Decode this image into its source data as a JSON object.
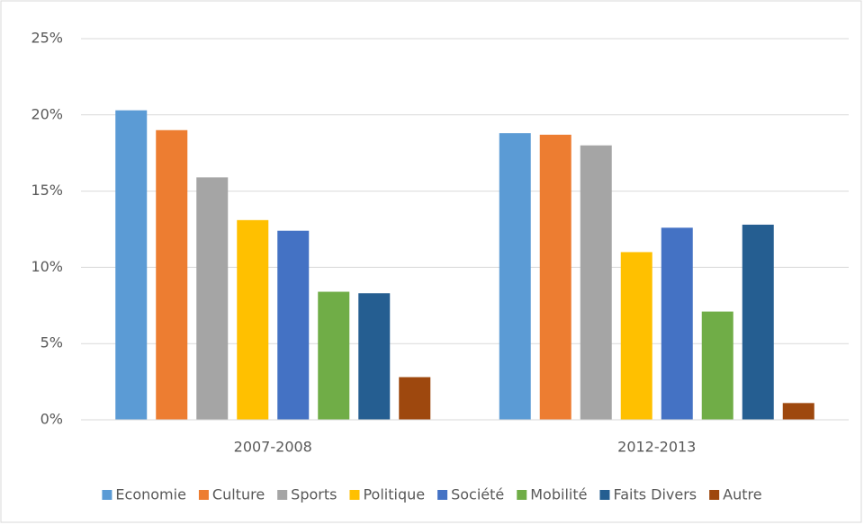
{
  "chart_data": {
    "type": "bar",
    "categories": [
      "2007-2008",
      "2012-2013"
    ],
    "series": [
      {
        "name": "Economie",
        "color": "#5b9bd5",
        "values": [
          20.3,
          18.8
        ]
      },
      {
        "name": "Culture",
        "color": "#ed7d31",
        "values": [
          19.0,
          18.7
        ]
      },
      {
        "name": "Sports",
        "color": "#a5a5a5",
        "values": [
          15.9,
          18.0
        ]
      },
      {
        "name": "Politique",
        "color": "#ffc000",
        "values": [
          13.1,
          11.0
        ]
      },
      {
        "name": "Société",
        "color": "#4472c4",
        "values": [
          12.4,
          12.6
        ]
      },
      {
        "name": "Mobilité",
        "color": "#70ad47",
        "values": [
          8.4,
          7.1
        ]
      },
      {
        "name": "Faits Divers",
        "color": "#255e91",
        "values": [
          8.3,
          12.8
        ]
      },
      {
        "name": "Autre",
        "color": "#9e480e",
        "values": [
          2.8,
          1.1
        ]
      }
    ],
    "ylim": [
      0,
      25
    ],
    "yticks": [
      {
        "value": 0,
        "label": "0%"
      },
      {
        "value": 5,
        "label": "5%"
      },
      {
        "value": 10,
        "label": "10%"
      },
      {
        "value": 15,
        "label": "15%"
      },
      {
        "value": 20,
        "label": "20%"
      },
      {
        "value": 25,
        "label": "25%"
      }
    ],
    "grid": true,
    "legend": "bottom"
  }
}
